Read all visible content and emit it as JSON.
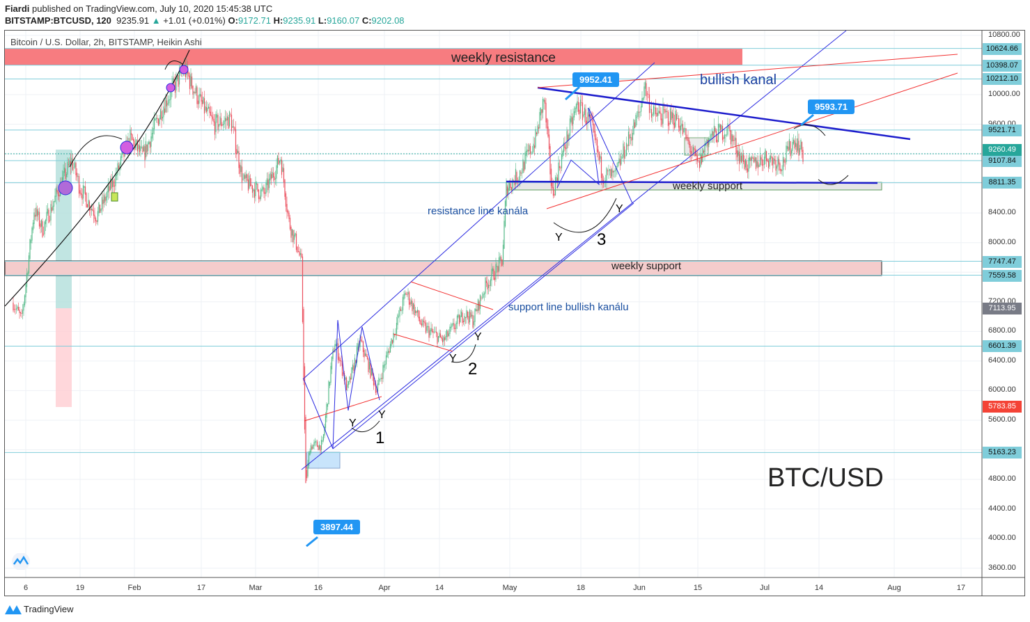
{
  "header": {
    "author": "Fiardi",
    "published": "published on TradingView.com, July 10, 2020 15:45:38 UTC",
    "symbol": "BITSTAMP:BTCUSD, 120",
    "last": "9235.91",
    "arrow": "▲",
    "change": "+1.01 (+0.01%)",
    "o_label": "O:",
    "o": "9172.71",
    "h_label": "H:",
    "h": "9235.91",
    "l_label": "L:",
    "l": "9160.07",
    "c_label": "C:",
    "c": "9202.08"
  },
  "legend": "Bitcoin / U.S. Dollar, 2h, BITSTAMP, Heikin Ashi",
  "footer": "TradingView",
  "colors": {
    "up": "#53b987",
    "down": "#eb4d5c",
    "level": "#7fcdda",
    "resistance_band": "#f77c80",
    "support_band": "#f4cccc",
    "channel": "#2a2ae0",
    "trend_red": "#f23030",
    "callout": "#2196f3"
  },
  "annotations": {
    "weekly_resistance": "weekly resistance",
    "bullish_kanal": "bullish kanal",
    "weekly_support_upper": "weekly support",
    "weekly_support_lower": "weekly support",
    "resistance_line": "resistance line kanála",
    "support_line": "support line bullish kanálu",
    "pair": "BTC/USD",
    "y": "Y",
    "wave1": "1",
    "wave2": "2",
    "wave3": "3"
  },
  "callouts": [
    "9952.41",
    "9593.71",
    "3897.44"
  ],
  "chart_data": {
    "type": "candlestick",
    "style": "Heikin Ashi",
    "interval": "2h",
    "title": "Bitcoin / U.S. Dollar, 2h, BITSTAMP, Heikin Ashi",
    "ylim": [
      3500,
      10900
    ],
    "y_ticks": [
      "10800.00",
      "10000.00",
      "9600.00",
      "8400.00",
      "8000.00",
      "7200.00",
      "6800.00",
      "6400.00",
      "6000.00",
      "5600.00",
      "4800.00",
      "4400.00",
      "4000.00",
      "3600.00"
    ],
    "x_ticks": [
      "6",
      "19",
      "Feb",
      "17",
      "Mar",
      "16",
      "Apr",
      "14",
      "May",
      "18",
      "Jun",
      "15",
      "Jul",
      "14",
      "Aug",
      "17"
    ],
    "price_levels": [
      "10624.66",
      "10398.07",
      "10212.10",
      "9521.71",
      "9107.84",
      "8811.35",
      "7747.47",
      "7559.58",
      "6601.39",
      "5163.23"
    ],
    "current_price": "9260.49",
    "marker_prices": [
      {
        "value": "7113.95",
        "color": "#787b86"
      },
      {
        "value": "5783.85",
        "color": "#f44336"
      }
    ],
    "approx_close_path": [
      [
        "2020-01-03",
        7190
      ],
      [
        "2020-01-05",
        6950
      ],
      [
        "2020-01-08",
        8450
      ],
      [
        "2020-01-10",
        8180
      ],
      [
        "2020-01-14",
        8740
      ],
      [
        "2020-01-17",
        9110
      ],
      [
        "2020-01-19",
        8740
      ],
      [
        "2020-01-23",
        8360
      ],
      [
        "2020-01-27",
        8830
      ],
      [
        "2020-01-31",
        9400
      ],
      [
        "2020-02-03",
        9160
      ],
      [
        "2020-02-08",
        9870
      ],
      [
        "2020-02-13",
        10340
      ],
      [
        "2020-02-17",
        9870
      ],
      [
        "2020-02-20",
        9590
      ],
      [
        "2020-02-24",
        9680
      ],
      [
        "2020-02-27",
        8830
      ],
      [
        "2020-03-03",
        8650
      ],
      [
        "2020-03-07",
        9160
      ],
      [
        "2020-03-09",
        8270
      ],
      [
        "2020-03-11",
        7940
      ],
      [
        "2020-03-12",
        7700
      ],
      [
        "2020-03-13",
        4700
      ],
      [
        "2020-03-14",
        5260
      ],
      [
        "2020-03-17",
        5260
      ],
      [
        "2020-03-19",
        6300
      ],
      [
        "2020-03-20",
        6670
      ],
      [
        "2020-03-23",
        6010
      ],
      [
        "2020-03-26",
        6670
      ],
      [
        "2020-03-30",
        6010
      ],
      [
        "2020-04-01",
        6390
      ],
      [
        "2020-04-06",
        7330
      ],
      [
        "2020-04-10",
        6860
      ],
      [
        "2020-04-15",
        6670
      ],
      [
        "2020-04-20",
        7050
      ],
      [
        "2020-04-22",
        6950
      ],
      [
        "2020-04-25",
        7420
      ],
      [
        "2020-04-29",
        7750
      ],
      [
        "2020-04-30",
        8740
      ],
      [
        "2020-05-03",
        8930
      ],
      [
        "2020-05-07",
        9400
      ],
      [
        "2020-05-09",
        9950
      ],
      [
        "2020-05-11",
        8650
      ],
      [
        "2020-05-13",
        9115
      ],
      [
        "2020-05-17",
        9870
      ],
      [
        "2020-05-20",
        9630
      ],
      [
        "2020-05-23",
        8930
      ],
      [
        "2020-05-26",
        8880
      ],
      [
        "2020-05-28",
        9210
      ],
      [
        "2020-06-01",
        9775
      ],
      [
        "2020-06-02",
        10150
      ],
      [
        "2020-06-04",
        9730
      ],
      [
        "2020-06-10",
        9680
      ],
      [
        "2020-06-12",
        9400
      ],
      [
        "2020-06-15",
        9020
      ],
      [
        "2020-06-17",
        9400
      ],
      [
        "2020-06-22",
        9540
      ],
      [
        "2020-06-25",
        9160
      ],
      [
        "2020-06-27",
        9020
      ],
      [
        "2020-07-01",
        9160
      ],
      [
        "2020-07-05",
        9070
      ],
      [
        "2020-07-08",
        9400
      ],
      [
        "2020-07-10",
        9200
      ]
    ]
  }
}
